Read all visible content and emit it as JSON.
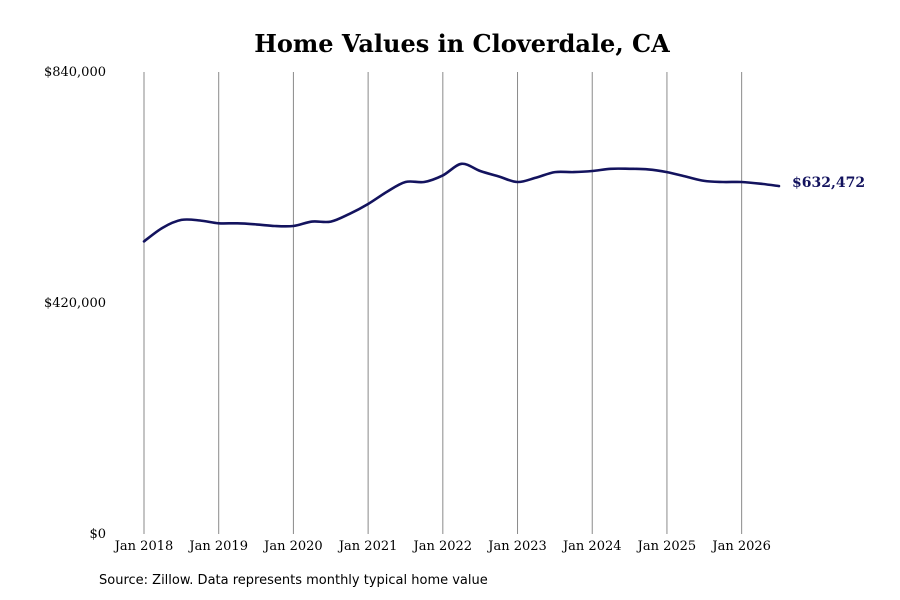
{
  "chart_data": {
    "type": "line",
    "title": "Home Values in Cloverdale, CA",
    "xlabel": "",
    "ylabel": "",
    "ylim": [
      0,
      840000
    ],
    "xlim": [
      "2018-01",
      "2026-07"
    ],
    "y_ticks": [
      0,
      420000,
      840000
    ],
    "y_tick_labels": [
      "$0",
      "$420,000",
      "$840,000"
    ],
    "x_ticks": [
      "2018-01",
      "2019-01",
      "2020-01",
      "2021-01",
      "2022-01",
      "2023-01",
      "2024-01",
      "2025-01",
      "2026-01"
    ],
    "x_tick_labels": [
      "Jan 2018",
      "Jan 2019",
      "Jan 2020",
      "Jan 2021",
      "Jan 2022",
      "Jan 2023",
      "Jan 2024",
      "Jan 2025",
      "Jan 2026"
    ],
    "grid": "vertical",
    "legend": "none",
    "series": [
      {
        "color": "#13135e",
        "x": [
          "2018-01",
          "2018-04",
          "2018-07",
          "2018-10",
          "2019-01",
          "2019-04",
          "2019-07",
          "2019-10",
          "2020-01",
          "2020-04",
          "2020-07",
          "2020-10",
          "2021-01",
          "2021-04",
          "2021-07",
          "2021-10",
          "2022-01",
          "2022-04",
          "2022-07",
          "2022-10",
          "2023-01",
          "2023-04",
          "2023-07",
          "2023-10",
          "2024-01",
          "2024-04",
          "2024-07",
          "2024-10",
          "2025-01",
          "2025-04",
          "2025-07",
          "2025-10",
          "2026-01",
          "2026-04",
          "2026-07"
        ],
        "values": [
          532000,
          557000,
          571000,
          570000,
          565000,
          565000,
          563000,
          560000,
          560000,
          568000,
          568000,
          582000,
          600000,
          622000,
          640000,
          640000,
          652000,
          673000,
          660000,
          650000,
          640000,
          648000,
          658000,
          658000,
          660000,
          664000,
          664000,
          663000,
          658000,
          650000,
          642000,
          640000,
          640000,
          637000,
          632472
        ]
      }
    ],
    "end_label": "$632,472",
    "source": "Source: Zillow. Data represents monthly typical home value"
  }
}
